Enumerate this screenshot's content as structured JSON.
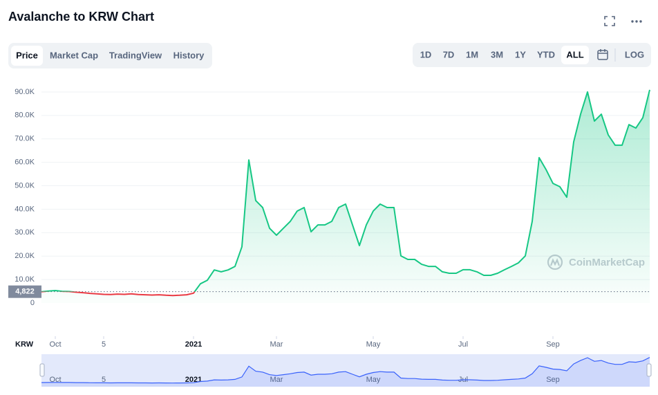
{
  "tabs": [
    "Price",
    "Market Cap",
    "TradingView",
    "History"
  ],
  "active_tab": 0,
  "ranges": [
    "1D",
    "7D",
    "1M",
    "3M",
    "1Y",
    "YTD",
    "ALL",
    "LOG"
  ],
  "active_range": 6,
  "watermark": "CoinMarketCap",
  "currency": "KRW",
  "chart_data": {
    "type": "line",
    "title": "Avalanche to KRW Chart",
    "categories": [
      null,
      null,
      "Oct",
      null,
      null,
      null,
      null,
      null,
      null,
      "5",
      null,
      null,
      null,
      null,
      null,
      null,
      null,
      null,
      null,
      null,
      null,
      null,
      "2021",
      null,
      null,
      null,
      null,
      null,
      null,
      null,
      null,
      null,
      null,
      null,
      "Mar",
      null,
      null,
      null,
      null,
      null,
      null,
      null,
      null,
      null,
      null,
      null,
      null,
      null,
      "May",
      null,
      null,
      null,
      null,
      null,
      null,
      null,
      null,
      null,
      null,
      null,
      null,
      "Jul",
      null,
      null,
      null,
      null,
      null,
      null,
      null,
      null,
      null,
      null,
      null,
      null,
      "Sep",
      null,
      null,
      null,
      null,
      null,
      null,
      null,
      null,
      null,
      null,
      null,
      null,
      null,
      null
    ],
    "series": [
      {
        "name": "Price",
        "values": [
          4822,
          5100,
          5300,
          5000,
          4900,
          4600,
          4400,
          4100,
          3900,
          3700,
          3600,
          3800,
          3700,
          3900,
          3600,
          3500,
          3400,
          3500,
          3300,
          3200,
          3300,
          3500,
          4200,
          8200,
          9700,
          14100,
          13300,
          14100,
          15600,
          24000,
          61000,
          43700,
          40700,
          31900,
          28900,
          31900,
          34800,
          39200,
          40700,
          30400,
          33300,
          33300,
          34800,
          40700,
          42200,
          33300,
          24500,
          33300,
          39200,
          42200,
          40700,
          40700,
          20100,
          18600,
          18600,
          16500,
          15600,
          15600,
          13300,
          12700,
          12700,
          14200,
          14200,
          13300,
          11800,
          11800,
          12700,
          14200,
          15600,
          17100,
          20100,
          34800,
          62000,
          56900,
          51000,
          49600,
          45100,
          68700,
          80500,
          90000,
          77600,
          80500,
          71700,
          67300,
          67300,
          76100,
          74600,
          79000,
          90900
        ]
      }
    ],
    "up_color": "#16c784",
    "down_color": "#ea3943",
    "navigator_color": "#3861fb",
    "baseline": {
      "value": 4822,
      "label": "4,822"
    },
    "ylim": [
      0,
      95000
    ],
    "yticks": [
      0,
      {
        "value": 10000,
        "label": "10.0K"
      },
      {
        "value": 20000,
        "label": "20.0K"
      },
      {
        "value": 30000,
        "label": "30.0K"
      },
      {
        "value": 40000,
        "label": "40.0K"
      },
      {
        "value": 50000,
        "label": "50.0K"
      },
      {
        "value": 60000,
        "label": "60.0K"
      },
      {
        "value": 70000,
        "label": "70.0K"
      },
      {
        "value": 80000,
        "label": "80.0K"
      },
      {
        "value": 90000,
        "label": "90.0K"
      }
    ],
    "grid": true
  }
}
